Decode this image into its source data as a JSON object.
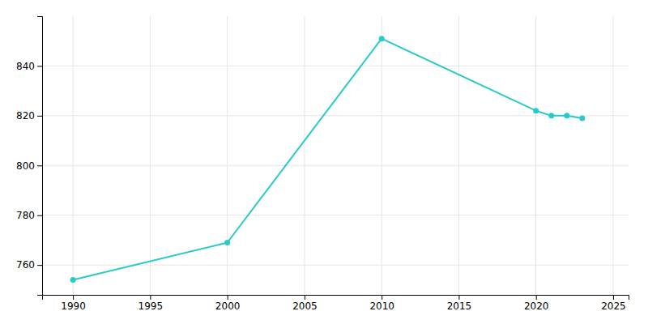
{
  "chart_data": {
    "type": "line",
    "x": [
      1990,
      2000,
      2010,
      2020,
      2021,
      2022,
      2023
    ],
    "values": [
      754,
      769,
      851,
      822,
      820,
      820,
      819
    ],
    "color": "#29cac9",
    "marker": "circle",
    "xlim": [
      1988,
      2026
    ],
    "ylim": [
      748,
      860
    ],
    "xticks": [
      1990,
      1995,
      2000,
      2005,
      2010,
      2015,
      2020,
      2025
    ],
    "yticks": [
      760,
      780,
      800,
      820,
      840
    ],
    "grid": true
  }
}
